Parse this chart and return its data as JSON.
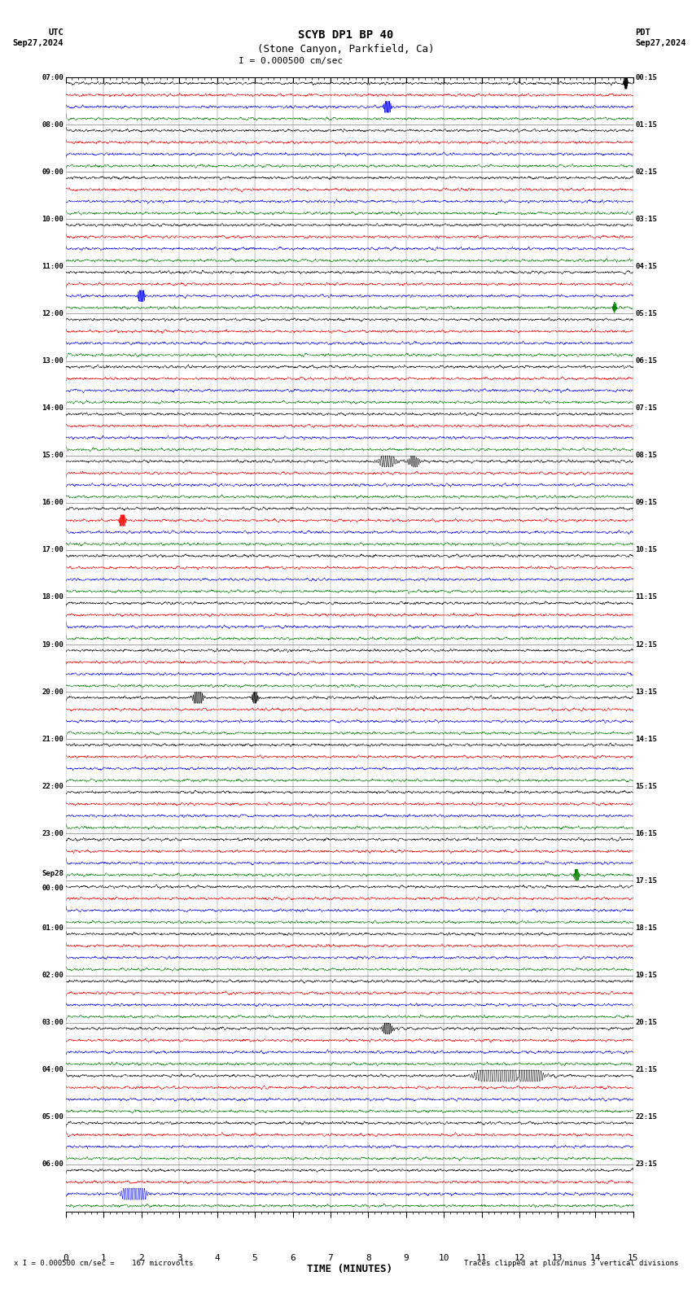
{
  "title_line1": "SCYB DP1 BP 40",
  "title_line2": "(Stone Canyon, Parkfield, Ca)",
  "scale_label": "I = 0.000500 cm/sec",
  "utc_label": "UTC",
  "utc_date": "Sep27,2024",
  "pdt_label": "PDT",
  "pdt_date": "Sep27,2024",
  "xlabel": "TIME (MINUTES)",
  "bottom_left": "x I = 0.000500 cm/sec =    167 microvolts",
  "bottom_right": "Traces clipped at plus/minus 3 vertical divisions",
  "utc_times": [
    "07:00",
    "08:00",
    "09:00",
    "10:00",
    "11:00",
    "12:00",
    "13:00",
    "14:00",
    "15:00",
    "16:00",
    "17:00",
    "18:00",
    "19:00",
    "20:00",
    "21:00",
    "22:00",
    "23:00",
    "Sep28\n00:00",
    "01:00",
    "02:00",
    "03:00",
    "04:00",
    "05:00",
    "06:00"
  ],
  "pdt_times": [
    "00:15",
    "01:15",
    "02:15",
    "03:15",
    "04:15",
    "05:15",
    "06:15",
    "07:15",
    "08:15",
    "09:15",
    "10:15",
    "11:15",
    "12:15",
    "13:15",
    "14:15",
    "15:15",
    "16:15",
    "17:15",
    "18:15",
    "19:15",
    "20:15",
    "21:15",
    "22:15",
    "23:15"
  ],
  "num_rows": 24,
  "traces_per_row": 4,
  "colors": [
    "black",
    "red",
    "blue",
    "green"
  ],
  "background_color": "#ffffff",
  "fig_width": 8.5,
  "fig_height": 15.84,
  "sep28_row_idx": 17,
  "noise_seed": 12345
}
